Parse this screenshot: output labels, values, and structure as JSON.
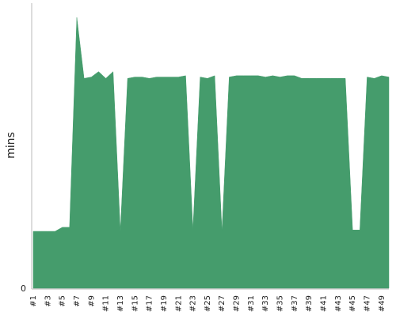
{
  "chart_data": {
    "type": "area",
    "ylabel": "mins",
    "y_tick_labels": [
      "0"
    ],
    "ylim": [
      0,
      105
    ],
    "grid": false,
    "x_tick_labels": [
      "#1",
      "#3",
      "#5",
      "#7",
      "#9",
      "#11",
      "#13",
      "#15",
      "#17",
      "#19",
      "#21",
      "#23",
      "#25",
      "#27",
      "#29",
      "#31",
      "#33",
      "#35",
      "#37",
      "#39",
      "#41",
      "#43",
      "#45",
      "#47",
      "#49"
    ],
    "categories": [
      "#1",
      "#2",
      "#3",
      "#4",
      "#5",
      "#6",
      "#7",
      "#8",
      "#9",
      "#10",
      "#11",
      "#12",
      "#13",
      "#14",
      "#15",
      "#16",
      "#17",
      "#18",
      "#19",
      "#20",
      "#21",
      "#22",
      "#23",
      "#24",
      "#25",
      "#26",
      "#27",
      "#28",
      "#29",
      "#30",
      "#31",
      "#32",
      "#33",
      "#34",
      "#35",
      "#36",
      "#37",
      "#38",
      "#39",
      "#40",
      "#41",
      "#42",
      "#43",
      "#44",
      "#45",
      "#46",
      "#47",
      "#48",
      "#49",
      "#50"
    ],
    "values": [
      21,
      21,
      21,
      21,
      22.5,
      22.5,
      100,
      77.5,
      78,
      80,
      77.5,
      80,
      21,
      77.5,
      78,
      78,
      77.5,
      78,
      78,
      78,
      78,
      78.5,
      21.5,
      78,
      77.5,
      78.5,
      21,
      78,
      78.5,
      78.5,
      78.5,
      78.5,
      78,
      78.5,
      78,
      78.5,
      78.5,
      77.5,
      77.5,
      77.5,
      77.5,
      77.5,
      77.5,
      77.5,
      21.5,
      21.5,
      78,
      77.5,
      78.5,
      78
    ],
    "colors": {
      "fill": "#459c6c",
      "axis": "#b8b8b8"
    }
  }
}
